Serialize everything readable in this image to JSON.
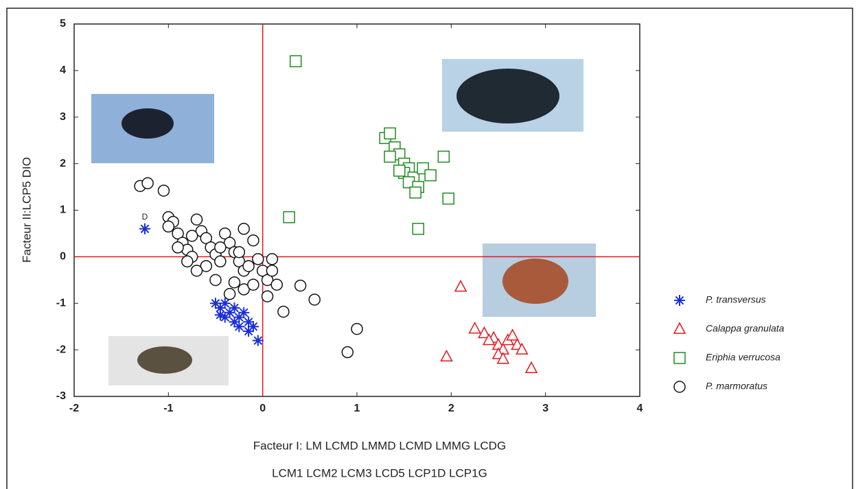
{
  "chart_data": {
    "type": "scatter",
    "x_label": "Facteur I: LM LCMD LMMD LCMD LMMG LCDG",
    "x_label_2": "LCM1 LCM2 LCM3 LCD5 LCP1D LCP1G",
    "y_label": "Facteur II:LCP5 DIO",
    "annotation": {
      "text": "D",
      "x": -1.25,
      "y": 0.85
    },
    "xlim": [
      -2,
      4
    ],
    "ylim": [
      -3,
      5
    ],
    "xticks": [
      -2,
      -1,
      0,
      1,
      2,
      3,
      4
    ],
    "yticks": [
      -3,
      -2,
      -1,
      0,
      1,
      2,
      3,
      4,
      5
    ],
    "reference_lines": {
      "x": 0,
      "y": 0,
      "color": "#e8141c"
    },
    "legend": "right",
    "series": [
      {
        "name": "P. transversus",
        "color": "#1a2fd6",
        "marker": "star",
        "x": [
          -1.25,
          -0.5,
          -0.45,
          -0.4,
          -0.35,
          -0.3,
          -0.25,
          -0.2,
          -0.15,
          -0.1,
          -0.3,
          -0.25,
          -0.4,
          -0.05,
          -0.15,
          -0.45
        ],
        "y": [
          0.6,
          -1.0,
          -1.1,
          -1.0,
          -1.2,
          -1.1,
          -1.3,
          -1.2,
          -1.4,
          -1.5,
          -1.4,
          -1.5,
          -1.3,
          -1.8,
          -1.6,
          -1.25
        ]
      },
      {
        "name": "Calappa granulata",
        "color": "#e8141c",
        "marker": "triangle",
        "x": [
          2.1,
          2.25,
          2.35,
          2.45,
          2.5,
          2.55,
          2.6,
          2.65,
          2.7,
          2.75,
          2.5,
          2.55,
          1.95,
          2.85,
          2.4
        ],
        "y": [
          -0.65,
          -1.55,
          -1.65,
          -1.75,
          -1.9,
          -2.0,
          -1.8,
          -1.7,
          -1.9,
          -2.0,
          -2.1,
          -2.2,
          -2.15,
          -2.4,
          -1.8
        ]
      },
      {
        "name": "Eriphia verrucosa",
        "color": "#1f8a1f",
        "marker": "square",
        "x": [
          0.35,
          0.28,
          1.3,
          1.35,
          1.4,
          1.45,
          1.35,
          1.5,
          1.55,
          1.5,
          1.6,
          1.55,
          1.65,
          1.62,
          1.7,
          1.78,
          1.92,
          1.97,
          1.65,
          1.45
        ],
        "y": [
          4.2,
          0.85,
          2.55,
          2.65,
          2.35,
          2.2,
          2.15,
          2.0,
          1.9,
          1.8,
          1.7,
          1.6,
          1.5,
          1.38,
          1.9,
          1.75,
          2.15,
          1.25,
          0.6,
          1.85
        ]
      },
      {
        "name": "P. marmoratus",
        "color": "#111111",
        "marker": "circle",
        "x": [
          -1.3,
          -1.22,
          -1.05,
          -1.0,
          -0.95,
          -1.0,
          -0.9,
          -0.85,
          -0.8,
          -0.75,
          -0.7,
          -0.65,
          -0.6,
          -0.55,
          -0.5,
          -0.45,
          -0.4,
          -0.35,
          -0.3,
          -0.25,
          -0.2,
          -0.15,
          -0.1,
          -0.05,
          0.0,
          0.05,
          -0.3,
          -0.5,
          -0.6,
          -0.7,
          -0.8,
          -0.35,
          -0.2,
          -0.1,
          0.1,
          0.15,
          0.05,
          0.4,
          0.55,
          0.22,
          1.0,
          0.9,
          -0.45,
          -0.9,
          -0.75,
          -0.2,
          -0.25,
          0.1
        ],
        "y": [
          1.52,
          1.58,
          1.42,
          0.85,
          0.75,
          0.65,
          0.5,
          0.3,
          0.15,
          0.0,
          0.8,
          0.55,
          0.4,
          0.2,
          0.05,
          -0.1,
          0.5,
          0.3,
          0.1,
          -0.1,
          -0.3,
          -0.2,
          0.35,
          -0.05,
          -0.3,
          -0.5,
          -0.55,
          -0.5,
          -0.2,
          -0.3,
          -0.1,
          -0.8,
          -0.7,
          -0.6,
          -0.3,
          -0.6,
          -0.85,
          -0.62,
          -0.92,
          -1.18,
          -1.55,
          -2.05,
          0.2,
          0.2,
          0.45,
          0.6,
          0.1,
          -0.05
        ]
      }
    ]
  }
}
